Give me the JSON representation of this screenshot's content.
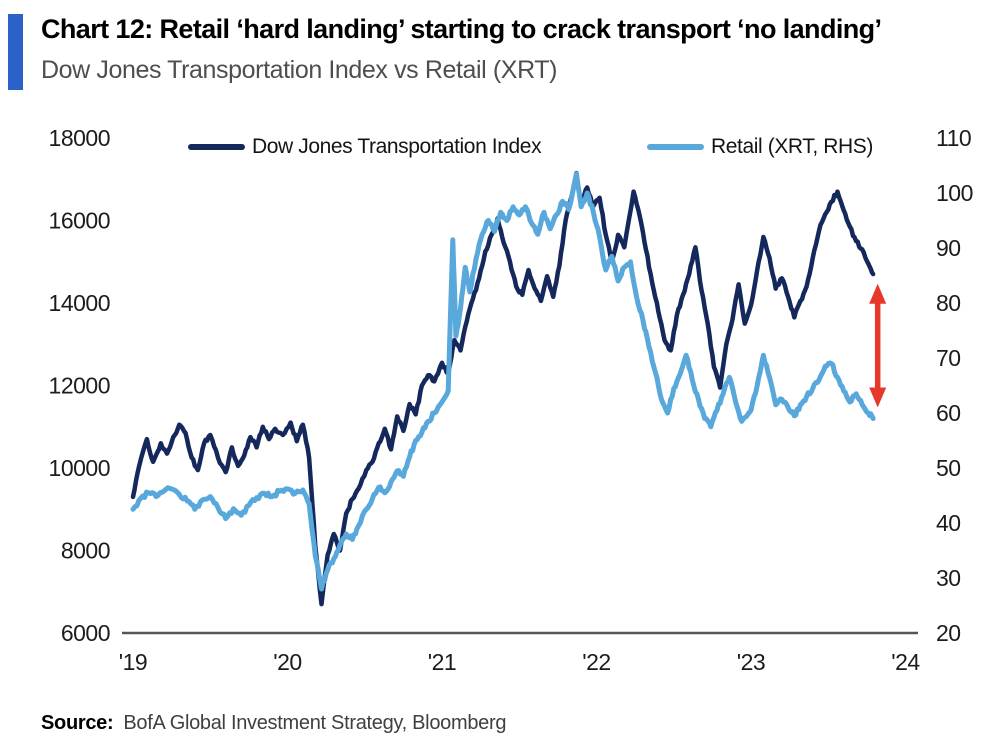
{
  "header": {
    "title": "Chart 12: Retail ‘hard landing’ starting to crack transport ‘no landing’",
    "subtitle": "Dow Jones Transportation Index vs Retail (XRT)"
  },
  "legend": [
    {
      "label": "Dow Jones Transportation Index",
      "color": "#14285c"
    },
    {
      "label": "Retail (XRT, RHS)",
      "color": "#58a8dc"
    }
  ],
  "source": {
    "label": "Source:",
    "text": "BofA Global Investment Strategy, Bloomberg"
  },
  "accent_color": "#2b62c9",
  "axis_line_color": "#57575a",
  "tick_text_color": "#1c1c1c",
  "chart_data": {
    "type": "line",
    "title": "Chart 12: Retail ‘hard landing’ starting to crack transport ‘no landing’",
    "subtitle": "Dow Jones Transportation Index vs Retail (XRT)",
    "grid": false,
    "legend_position": "top",
    "x_axis": {
      "tick_labels": [
        "'19",
        "'20",
        "'21",
        "'22",
        "'23",
        "'24"
      ],
      "tick_years": [
        2019,
        2020,
        2021,
        2022,
        2023,
        2024
      ],
      "range_years": [
        2019,
        2024
      ]
    },
    "left_axis": {
      "min": 6000,
      "max": 18000,
      "ticks": [
        6000,
        8000,
        10000,
        12000,
        14000,
        16000,
        18000
      ]
    },
    "right_axis": {
      "min": 20,
      "max": 110,
      "ticks": [
        20,
        30,
        40,
        50,
        60,
        70,
        80,
        90,
        100,
        110
      ]
    },
    "series": [
      {
        "name": "Dow Jones Transportation Index",
        "axis": "left",
        "color": "#14285c",
        "width": 4.5,
        "jitter": 95,
        "points": [
          [
            2019.0,
            9300
          ],
          [
            2019.04,
            10050
          ],
          [
            2019.09,
            10700
          ],
          [
            2019.13,
            10150
          ],
          [
            2019.18,
            10600
          ],
          [
            2019.22,
            10350
          ],
          [
            2019.3,
            11050
          ],
          [
            2019.34,
            10850
          ],
          [
            2019.38,
            10250
          ],
          [
            2019.42,
            9950
          ],
          [
            2019.46,
            10600
          ],
          [
            2019.5,
            10800
          ],
          [
            2019.55,
            10250
          ],
          [
            2019.6,
            9900
          ],
          [
            2019.64,
            10500
          ],
          [
            2019.68,
            10050
          ],
          [
            2019.72,
            10300
          ],
          [
            2019.76,
            10750
          ],
          [
            2019.8,
            10500
          ],
          [
            2019.84,
            11000
          ],
          [
            2019.88,
            10700
          ],
          [
            2019.92,
            10950
          ],
          [
            2019.97,
            10800
          ],
          [
            2020.02,
            11100
          ],
          [
            2020.06,
            10650
          ],
          [
            2020.1,
            11050
          ],
          [
            2020.14,
            10250
          ],
          [
            2020.18,
            8100
          ],
          [
            2020.22,
            6700
          ],
          [
            2020.26,
            7900
          ],
          [
            2020.3,
            8400
          ],
          [
            2020.34,
            8000
          ],
          [
            2020.38,
            8900
          ],
          [
            2020.42,
            9250
          ],
          [
            2020.46,
            9500
          ],
          [
            2020.51,
            9950
          ],
          [
            2020.55,
            10150
          ],
          [
            2020.59,
            10600
          ],
          [
            2020.63,
            10950
          ],
          [
            2020.67,
            10450
          ],
          [
            2020.71,
            11250
          ],
          [
            2020.75,
            10900
          ],
          [
            2020.79,
            11550
          ],
          [
            2020.83,
            11300
          ],
          [
            2020.87,
            12000
          ],
          [
            2020.91,
            12250
          ],
          [
            2020.95,
            12100
          ],
          [
            2021.0,
            12550
          ],
          [
            2021.04,
            12300
          ],
          [
            2021.08,
            13100
          ],
          [
            2021.12,
            12850
          ],
          [
            2021.16,
            13550
          ],
          [
            2021.2,
            14100
          ],
          [
            2021.24,
            14600
          ],
          [
            2021.28,
            15250
          ],
          [
            2021.32,
            15650
          ],
          [
            2021.36,
            16050
          ],
          [
            2021.4,
            15450
          ],
          [
            2021.44,
            15000
          ],
          [
            2021.48,
            14400
          ],
          [
            2021.52,
            14200
          ],
          [
            2021.56,
            14800
          ],
          [
            2021.6,
            14350
          ],
          [
            2021.64,
            14050
          ],
          [
            2021.68,
            14650
          ],
          [
            2021.72,
            14150
          ],
          [
            2021.76,
            14900
          ],
          [
            2021.8,
            16000
          ],
          [
            2021.84,
            16600
          ],
          [
            2021.87,
            17150
          ],
          [
            2021.9,
            16400
          ],
          [
            2021.94,
            16800
          ],
          [
            2021.98,
            16350
          ],
          [
            2022.02,
            16550
          ],
          [
            2022.06,
            15650
          ],
          [
            2022.1,
            15000
          ],
          [
            2022.14,
            15650
          ],
          [
            2022.18,
            15350
          ],
          [
            2022.24,
            16700
          ],
          [
            2022.28,
            16100
          ],
          [
            2022.32,
            15300
          ],
          [
            2022.36,
            14500
          ],
          [
            2022.4,
            13800
          ],
          [
            2022.44,
            13100
          ],
          [
            2022.48,
            12850
          ],
          [
            2022.52,
            13700
          ],
          [
            2022.56,
            14200
          ],
          [
            2022.6,
            14700
          ],
          [
            2022.64,
            15350
          ],
          [
            2022.68,
            14300
          ],
          [
            2022.72,
            13500
          ],
          [
            2022.76,
            12450
          ],
          [
            2022.8,
            11950
          ],
          [
            2022.84,
            13000
          ],
          [
            2022.88,
            13600
          ],
          [
            2022.92,
            14450
          ],
          [
            2022.96,
            13500
          ],
          [
            2023.0,
            13950
          ],
          [
            2023.04,
            14800
          ],
          [
            2023.08,
            15600
          ],
          [
            2023.12,
            15100
          ],
          [
            2023.16,
            14350
          ],
          [
            2023.2,
            14600
          ],
          [
            2023.24,
            14150
          ],
          [
            2023.28,
            13650
          ],
          [
            2023.32,
            14050
          ],
          [
            2023.36,
            14400
          ],
          [
            2023.4,
            15100
          ],
          [
            2023.44,
            15750
          ],
          [
            2023.48,
            16150
          ],
          [
            2023.52,
            16450
          ],
          [
            2023.56,
            16700
          ],
          [
            2023.6,
            16250
          ],
          [
            2023.64,
            15850
          ],
          [
            2023.68,
            15500
          ],
          [
            2023.72,
            15300
          ],
          [
            2023.76,
            14950
          ],
          [
            2023.79,
            14700
          ]
        ]
      },
      {
        "name": "Retail (XRT, RHS)",
        "axis": "right",
        "color": "#58a8dc",
        "width": 5,
        "jitter": 0.8,
        "points": [
          [
            2019.0,
            42.5
          ],
          [
            2019.05,
            44.5
          ],
          [
            2019.1,
            45.5
          ],
          [
            2019.15,
            44.8
          ],
          [
            2019.2,
            45.8
          ],
          [
            2019.25,
            46.2
          ],
          [
            2019.3,
            45.2
          ],
          [
            2019.35,
            44.0
          ],
          [
            2019.4,
            42.5
          ],
          [
            2019.45,
            44.2
          ],
          [
            2019.5,
            44.8
          ],
          [
            2019.55,
            42.8
          ],
          [
            2019.6,
            40.8
          ],
          [
            2019.65,
            42.6
          ],
          [
            2019.7,
            41.4
          ],
          [
            2019.75,
            43.2
          ],
          [
            2019.8,
            44.6
          ],
          [
            2019.85,
            45.4
          ],
          [
            2019.9,
            44.8
          ],
          [
            2019.95,
            45.8
          ],
          [
            2020.0,
            46.2
          ],
          [
            2020.05,
            45.4
          ],
          [
            2020.1,
            46.0
          ],
          [
            2020.14,
            43.5
          ],
          [
            2020.18,
            34.0
          ],
          [
            2020.22,
            28.0
          ],
          [
            2020.26,
            31.5
          ],
          [
            2020.3,
            33.5
          ],
          [
            2020.34,
            36.0
          ],
          [
            2020.38,
            38.0
          ],
          [
            2020.42,
            37.0
          ],
          [
            2020.46,
            39.5
          ],
          [
            2020.51,
            42.5
          ],
          [
            2020.55,
            44.5
          ],
          [
            2020.59,
            46.5
          ],
          [
            2020.63,
            45.5
          ],
          [
            2020.67,
            47.5
          ],
          [
            2020.71,
            49.5
          ],
          [
            2020.75,
            48.5
          ],
          [
            2020.79,
            52.0
          ],
          [
            2020.83,
            55.0
          ],
          [
            2020.87,
            56.5
          ],
          [
            2020.91,
            58.5
          ],
          [
            2020.95,
            60.0
          ],
          [
            2021.0,
            62.0
          ],
          [
            2021.04,
            64.0
          ],
          [
            2021.07,
            91.5
          ],
          [
            2021.09,
            74.0
          ],
          [
            2021.12,
            79.0
          ],
          [
            2021.15,
            86.5
          ],
          [
            2021.18,
            82.0
          ],
          [
            2021.22,
            88.0
          ],
          [
            2021.26,
            92.5
          ],
          [
            2021.3,
            95.0
          ],
          [
            2021.34,
            93.0
          ],
          [
            2021.38,
            96.5
          ],
          [
            2021.42,
            95.0
          ],
          [
            2021.46,
            97.5
          ],
          [
            2021.5,
            96.0
          ],
          [
            2021.54,
            97.5
          ],
          [
            2021.58,
            94.5
          ],
          [
            2021.62,
            92.5
          ],
          [
            2021.66,
            96.5
          ],
          [
            2021.7,
            93.5
          ],
          [
            2021.74,
            96.0
          ],
          [
            2021.78,
            98.5
          ],
          [
            2021.82,
            97.0
          ],
          [
            2021.87,
            103.5
          ],
          [
            2021.9,
            97.5
          ],
          [
            2021.94,
            100.0
          ],
          [
            2021.98,
            96.5
          ],
          [
            2022.02,
            92.0
          ],
          [
            2022.06,
            86.0
          ],
          [
            2022.1,
            88.5
          ],
          [
            2022.14,
            84.0
          ],
          [
            2022.18,
            86.5
          ],
          [
            2022.22,
            87.5
          ],
          [
            2022.26,
            81.0
          ],
          [
            2022.3,
            77.0
          ],
          [
            2022.34,
            72.0
          ],
          [
            2022.38,
            67.5
          ],
          [
            2022.42,
            62.5
          ],
          [
            2022.46,
            60.0
          ],
          [
            2022.5,
            64.5
          ],
          [
            2022.54,
            67.0
          ],
          [
            2022.58,
            70.5
          ],
          [
            2022.62,
            66.0
          ],
          [
            2022.66,
            62.5
          ],
          [
            2022.7,
            59.0
          ],
          [
            2022.74,
            57.5
          ],
          [
            2022.78,
            60.5
          ],
          [
            2022.82,
            63.5
          ],
          [
            2022.86,
            66.5
          ],
          [
            2022.9,
            62.0
          ],
          [
            2022.94,
            58.5
          ],
          [
            2023.0,
            60.5
          ],
          [
            2023.04,
            65.0
          ],
          [
            2023.08,
            70.5
          ],
          [
            2023.12,
            66.5
          ],
          [
            2023.16,
            61.5
          ],
          [
            2023.2,
            62.5
          ],
          [
            2023.24,
            61.0
          ],
          [
            2023.28,
            59.5
          ],
          [
            2023.32,
            61.5
          ],
          [
            2023.36,
            63.0
          ],
          [
            2023.4,
            64.5
          ],
          [
            2023.44,
            66.0
          ],
          [
            2023.48,
            68.5
          ],
          [
            2023.52,
            69.0
          ],
          [
            2023.56,
            66.5
          ],
          [
            2023.6,
            64.0
          ],
          [
            2023.64,
            62.0
          ],
          [
            2023.68,
            63.5
          ],
          [
            2023.72,
            61.5
          ],
          [
            2023.76,
            60.0
          ],
          [
            2023.79,
            59.0
          ]
        ]
      }
    ],
    "annotation": {
      "type": "double-headed-arrow",
      "color": "#e6392b",
      "x_year": 2023.82,
      "axis": "right",
      "from_value": 61.0,
      "to_value": 83.5
    }
  }
}
